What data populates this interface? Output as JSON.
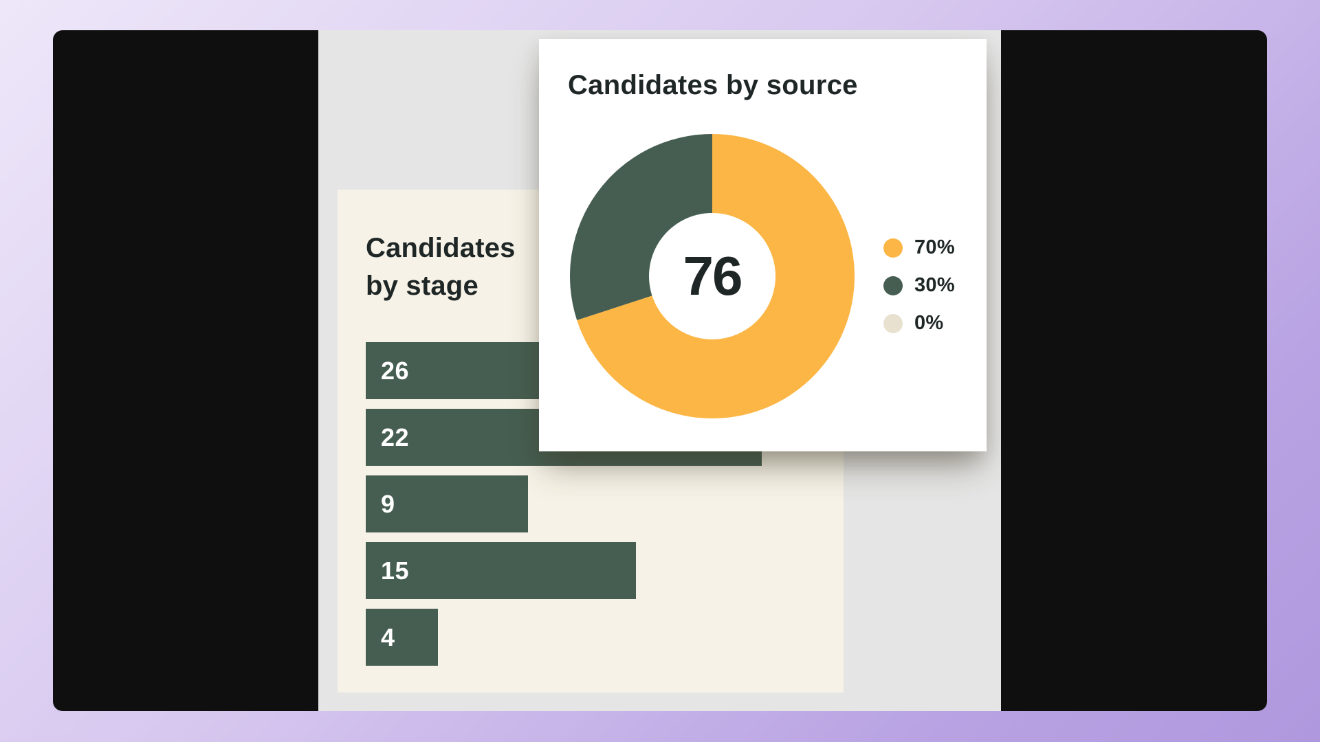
{
  "colors": {
    "background_start": "#eee7f9",
    "background_end": "#b098de",
    "window": "#0f0f0f",
    "canvas": "#e5e5e5",
    "stage_card": "#f6f2e7",
    "bar": "#465e51",
    "text_dark": "#1f2626",
    "source_orange": "#fcb645",
    "source_green": "#465e51",
    "source_beige": "#e8e1cf"
  },
  "stage_card": {
    "title": "Candidates by stage",
    "title_line1": "Candidates",
    "title_line2": "by stage",
    "bars": [
      {
        "label": "26",
        "value": 26
      },
      {
        "label": "22",
        "value": 22
      },
      {
        "label": "9",
        "value": 9
      },
      {
        "label": "15",
        "value": 15
      },
      {
        "label": "4",
        "value": 4
      }
    ]
  },
  "source_card": {
    "title": "Candidates by source",
    "total": "76",
    "legend": [
      {
        "label": "70%",
        "color": "#fcb645"
      },
      {
        "label": "30%",
        "color": "#465e51"
      },
      {
        "label": "0%",
        "color": "#e8e1cf"
      }
    ]
  },
  "chart_data": [
    {
      "type": "bar",
      "orientation": "horizontal",
      "title": "Candidates by stage",
      "categories": [
        "",
        "",
        "",
        "",
        ""
      ],
      "values": [
        26,
        22,
        9,
        15,
        4
      ],
      "data_labels": [
        "26",
        "22",
        "9",
        "15",
        "4"
      ],
      "xlabel": "",
      "ylabel": "",
      "grid": false,
      "legend": null,
      "color": "#465e51"
    },
    {
      "type": "pie",
      "subtype": "donut",
      "title": "Candidates by source",
      "center_label": "76",
      "total": 76,
      "series": [
        {
          "name": "70%",
          "value": 70,
          "color": "#fcb645"
        },
        {
          "name": "30%",
          "value": 30,
          "color": "#465e51"
        },
        {
          "name": "0%",
          "value": 0,
          "color": "#e8e1cf"
        }
      ],
      "legend_position": "right"
    }
  ]
}
